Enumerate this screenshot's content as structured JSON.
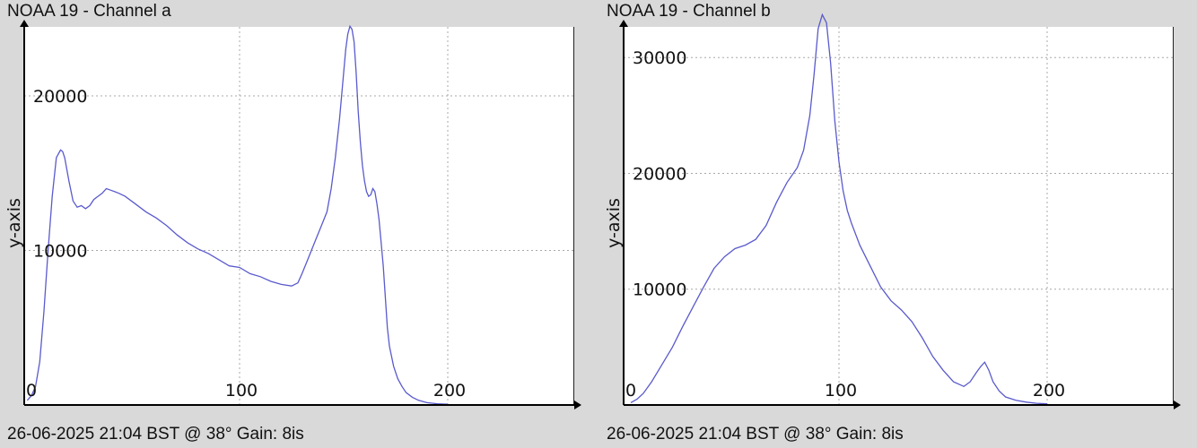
{
  "chart_data": [
    {
      "type": "line",
      "title": "NOAA 19 - Channel a",
      "footer": "26-06-2025 21:04 BST @ 38° Gain: 8is",
      "ylabel": "y-axis",
      "xlabel": "",
      "xlim": [
        0,
        250
      ],
      "ylim": [
        0,
        25000
      ],
      "xticks": [
        0,
        100,
        200
      ],
      "yticks": [
        10000,
        20000
      ],
      "grid": true,
      "color": "#5a5acd",
      "x": [
        -2,
        0,
        2,
        4,
        6,
        8,
        10,
        12,
        14,
        15,
        16,
        18,
        20,
        22,
        24,
        26,
        28,
        30,
        32,
        34,
        36,
        38,
        40,
        42,
        45,
        50,
        55,
        60,
        65,
        70,
        75,
        80,
        85,
        90,
        95,
        100,
        105,
        110,
        115,
        120,
        125,
        128,
        130,
        133,
        136,
        139,
        142,
        144,
        146,
        148,
        150,
        151,
        152,
        153,
        154,
        155,
        156,
        157,
        158,
        159,
        160,
        161,
        162,
        163,
        164,
        165,
        166,
        167,
        168,
        169,
        170,
        171,
        172,
        174,
        176,
        178,
        180,
        183,
        186,
        190,
        195,
        200
      ],
      "values": [
        300,
        600,
        1200,
        2800,
        6000,
        10000,
        13500,
        16000,
        16500,
        16400,
        16000,
        14500,
        13200,
        12800,
        12900,
        12700,
        12900,
        13300,
        13500,
        13700,
        14000,
        13900,
        13800,
        13700,
        13500,
        13000,
        12500,
        12100,
        11600,
        11000,
        10500,
        10100,
        9800,
        9400,
        9000,
        8900,
        8500,
        8300,
        8000,
        7800,
        7700,
        7900,
        8500,
        9500,
        10500,
        11500,
        12500,
        14000,
        16000,
        18500,
        21500,
        23000,
        24000,
        24500,
        24300,
        23500,
        21500,
        19000,
        17000,
        15500,
        14500,
        13800,
        13500,
        13600,
        14000,
        13800,
        13000,
        12000,
        10500,
        9000,
        7000,
        5000,
        3800,
        2500,
        1700,
        1200,
        800,
        500,
        300,
        150,
        80,
        50
      ]
    },
    {
      "type": "line",
      "title": "NOAA 19 - Channel b",
      "footer": "26-06-2025 21:04 BST @ 38° Gain: 8is",
      "ylabel": "y-axis",
      "xlabel": "",
      "xlim": [
        0,
        250
      ],
      "ylim": [
        0,
        35000
      ],
      "xticks": [
        0,
        100,
        200
      ],
      "yticks": [
        10000,
        20000,
        30000
      ],
      "grid": true,
      "color": "#5a5acd",
      "x": [
        0,
        3,
        6,
        10,
        15,
        20,
        25,
        30,
        35,
        40,
        45,
        50,
        55,
        60,
        65,
        70,
        75,
        80,
        83,
        86,
        88,
        90,
        92,
        94,
        96,
        98,
        100,
        102,
        104,
        106,
        110,
        115,
        120,
        125,
        130,
        135,
        140,
        145,
        150,
        155,
        160,
        163,
        166,
        168,
        170,
        172,
        174,
        177,
        180,
        185,
        190,
        195,
        200
      ],
      "values": [
        200,
        500,
        1000,
        2000,
        3500,
        5000,
        6800,
        8500,
        10200,
        11800,
        12800,
        13500,
        13800,
        14300,
        15500,
        17500,
        19200,
        20500,
        22000,
        25000,
        28500,
        32500,
        33700,
        33000,
        29500,
        24500,
        21000,
        18500,
        16800,
        15700,
        13800,
        12000,
        10200,
        9000,
        8200,
        7200,
        5800,
        4200,
        3000,
        2000,
        1600,
        2000,
        2800,
        3300,
        3700,
        3000,
        2000,
        1200,
        700,
        400,
        250,
        150,
        100
      ]
    }
  ]
}
